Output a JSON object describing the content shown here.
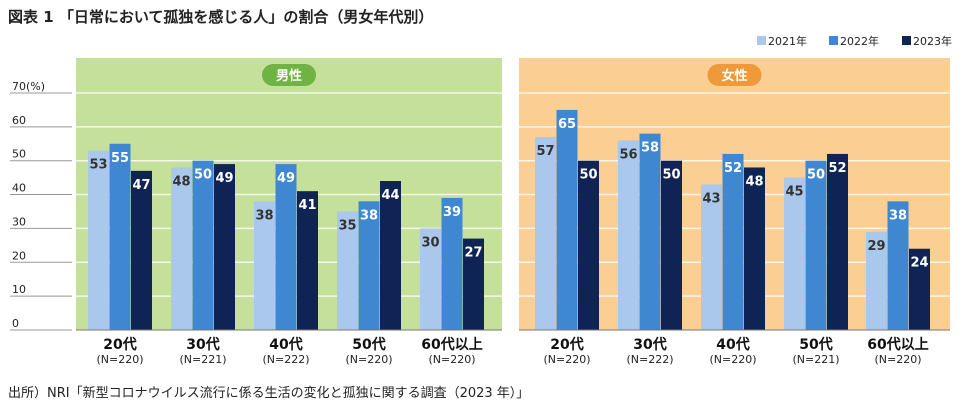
{
  "chart_data": [
    {
      "type": "bar",
      "title": "図表 1 「日常において孤独を感じる人」の割合（男女年代別）",
      "panel": "男性",
      "panel_color": "#c5e09b",
      "badge_color": "#6fb442",
      "categories": [
        "20代",
        "30代",
        "40代",
        "50代",
        "60代以上"
      ],
      "sample_sizes": [
        "(N=220)",
        "(N=221)",
        "(N=222)",
        "(N=220)",
        "(N=220)"
      ],
      "series": [
        {
          "name": "2021年",
          "color": "#a9c8ec",
          "values": [
            53,
            48,
            38,
            35,
            30
          ]
        },
        {
          "name": "2022年",
          "color": "#3f87d0",
          "values": [
            55,
            50,
            49,
            38,
            39
          ]
        },
        {
          "name": "2023年",
          "color": "#0f2455",
          "values": [
            47,
            49,
            41,
            44,
            27
          ]
        }
      ],
      "ylim": [
        0,
        70
      ],
      "yticks": [
        "0",
        "10",
        "20",
        "30",
        "40",
        "50",
        "60",
        "70"
      ],
      "yunit": "(%)",
      "grid": true,
      "legend": "top-right"
    },
    {
      "type": "bar",
      "panel": "女性",
      "panel_color": "#fbcf93",
      "badge_color": "#ee9a3a",
      "categories": [
        "20代",
        "30代",
        "40代",
        "50代",
        "60代以上"
      ],
      "sample_sizes": [
        "(N=220)",
        "(N=222)",
        "(N=220)",
        "(N=221)",
        "(N=220)"
      ],
      "series": [
        {
          "name": "2021年",
          "color": "#a9c8ec",
          "values": [
            57,
            56,
            43,
            45,
            29
          ]
        },
        {
          "name": "2022年",
          "color": "#3f87d0",
          "values": [
            65,
            58,
            52,
            50,
            38
          ]
        },
        {
          "name": "2023年",
          "color": "#0f2455",
          "values": [
            50,
            50,
            48,
            52,
            24
          ]
        }
      ],
      "ylim": [
        0,
        70
      ]
    }
  ],
  "title": "図表 1 「日常において孤独を感じる人」の割合（男女年代別）",
  "source": "出所）NRI「新型コロナウイルス流行に係る生活の変化と孤独に関する調査（2023 年）」"
}
